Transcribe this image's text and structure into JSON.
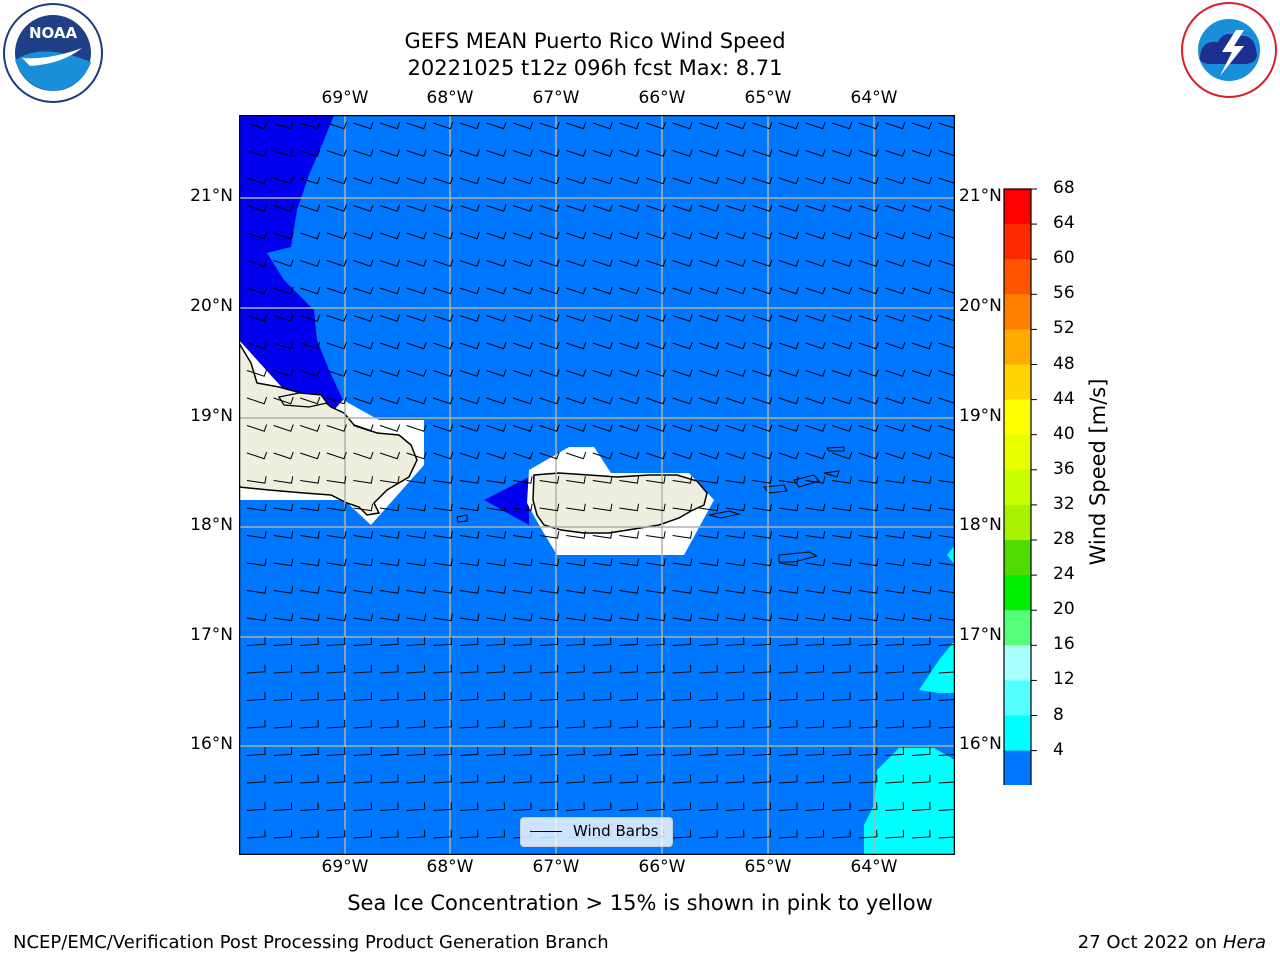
{
  "title_line1": "GEFS MEAN Puerto Rico Wind Speed",
  "title_line2": "20221025 t12z 096h fcst   Max: 8.71",
  "lon_labels": [
    "69°W",
    "68°W",
    "67°W",
    "66°W",
    "65°W",
    "64°W"
  ],
  "lat_labels": [
    "21°N",
    "20°N",
    "19°N",
    "18°N",
    "17°N",
    "16°N"
  ],
  "colorbar": {
    "label": "Wind Speed [m/s]",
    "ticks": [
      "68",
      "64",
      "60",
      "56",
      "52",
      "48",
      "44",
      "40",
      "36",
      "32",
      "28",
      "24",
      "20",
      "16",
      "12",
      "8",
      "4"
    ],
    "colors": [
      "#ff0000",
      "#ff2a00",
      "#ff5500",
      "#ff8000",
      "#ffaa00",
      "#ffd400",
      "#ffff00",
      "#e8ff00",
      "#c8ff00",
      "#a8f200",
      "#50dc00",
      "#00ee00",
      "#55ff77",
      "#aaffff",
      "#55ffff",
      "#00ffff",
      "#0077ff"
    ],
    "extend_color": "#0000ee"
  },
  "legend": {
    "label": "Wind Barbs"
  },
  "sea_ice_note": "Sea Ice Concentration > 15% is shown in pink to yellow",
  "footer_left": "NCEP/EMC/Verification Post Processing Product Generation Branch",
  "footer_right_prefix": "27 Oct 2022 on ",
  "footer_right_host": "Hera",
  "logos": {
    "left": "NOAA",
    "right": "NATIONAL WEATHER SERVICE"
  },
  "colors": {
    "ocean": "#0077ff",
    "low_wind": "#0000ee",
    "cyan": "#00ffff",
    "land": "#efefdf"
  }
}
